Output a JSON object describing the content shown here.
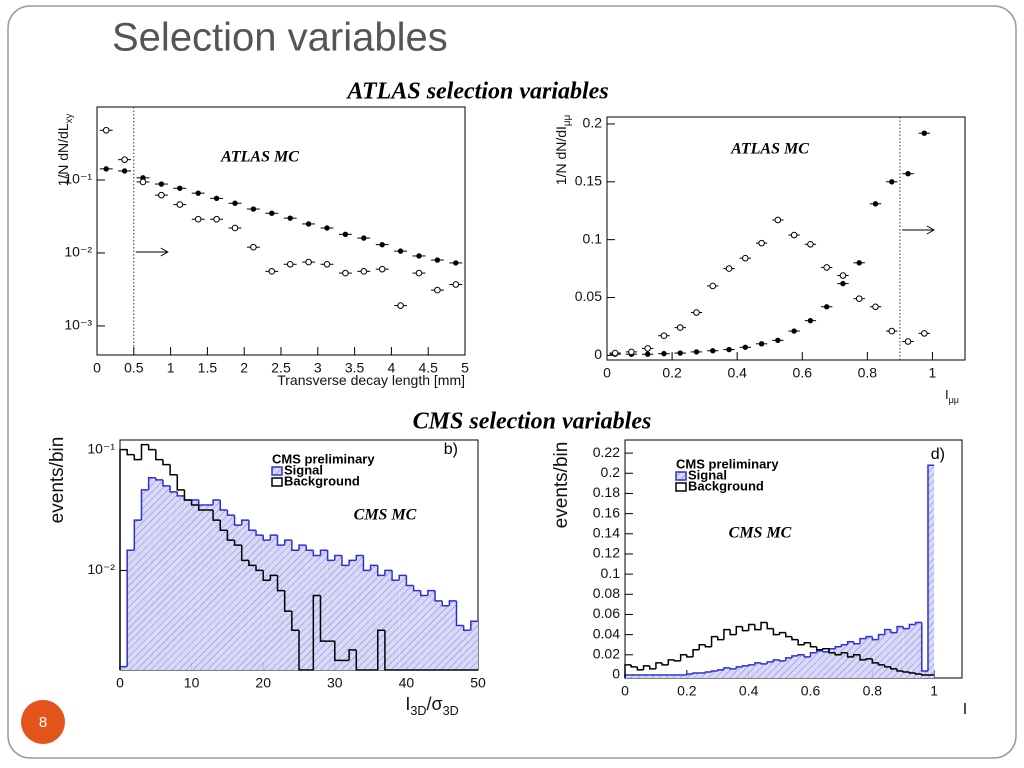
{
  "slide": {
    "title": "Selection variables",
    "atlas_heading": "ATLAS selection variables",
    "cms_heading": "CMS selection variables",
    "page_number": "8"
  },
  "chart_data": [
    {
      "type": "scatter",
      "annotation": "ATLAS MC",
      "x_label": [
        "Transverse decay length [mm]"
      ],
      "y_label": [
        "1/N dN/dL",
        "xy"
      ],
      "x": [
        0.125,
        0.375,
        0.625,
        0.875,
        1.125,
        1.375,
        1.625,
        1.875,
        2.125,
        2.375,
        2.625,
        2.875,
        3.125,
        3.375,
        3.625,
        3.875,
        4.125,
        4.375,
        4.625,
        4.875
      ],
      "series": [
        {
          "marker": "filled",
          "color": "#000000",
          "values": [
            0.142,
            0.133,
            0.107,
            0.088,
            0.077,
            0.066,
            0.056,
            0.048,
            0.04,
            0.035,
            0.03,
            0.025,
            0.022,
            0.018,
            0.016,
            0.013,
            0.0106,
            0.0091,
            0.008,
            0.0073
          ]
        },
        {
          "marker": "open",
          "color": "#000000",
          "values": [
            0.48,
            0.19,
            0.094,
            0.062,
            0.046,
            0.029,
            0.029,
            0.022,
            0.012,
            0.0056,
            0.007,
            0.0075,
            0.007,
            0.0053,
            0.0056,
            0.006,
            0.0019,
            0.0053,
            0.0031,
            0.0037
          ]
        }
      ],
      "cut": 0.5,
      "log_y": true,
      "xlim": [
        0,
        5
      ],
      "ylim": [
        0.0004,
        1
      ],
      "xticks": [
        0,
        0.5,
        1,
        1.5,
        2,
        2.5,
        3,
        3.5,
        4,
        4.5,
        5
      ],
      "yticks": [
        {
          "value": 0.001,
          "label": "10⁻³"
        },
        {
          "value": 0.01,
          "label": "10⁻²"
        },
        {
          "value": 0.1,
          "label": "10⁻¹"
        }
      ]
    },
    {
      "type": "scatter",
      "annotation": "ATLAS MC",
      "x_label": [
        "I",
        "μμ"
      ],
      "y_label": [
        "1/N dN/dI",
        "μμ"
      ],
      "x": [
        0.025,
        0.075,
        0.125,
        0.175,
        0.225,
        0.275,
        0.325,
        0.375,
        0.425,
        0.475,
        0.525,
        0.575,
        0.625,
        0.675,
        0.725,
        0.775,
        0.825,
        0.875,
        0.925,
        0.975
      ],
      "series": [
        {
          "marker": "filled",
          "color": "#000000",
          "values": [
            0.001,
            0.001,
            0.001,
            0.0015,
            0.002,
            0.003,
            0.004,
            0.005,
            0.007,
            0.01,
            0.013,
            0.021,
            0.03,
            0.042,
            0.062,
            0.08,
            0.131,
            0.15,
            0.157,
            0.192
          ]
        },
        {
          "marker": "open",
          "color": "#000000",
          "values": [
            0.002,
            0.003,
            0.006,
            0.017,
            0.024,
            0.037,
            0.06,
            0.075,
            0.084,
            0.097,
            0.117,
            0.104,
            0.096,
            0.076,
            0.069,
            0.049,
            0.042,
            0.021,
            0.012,
            0.019
          ]
        }
      ],
      "cut": 0.9,
      "log_y": false,
      "xlim": [
        0,
        1.1
      ],
      "ylim": [
        -0.004,
        0.206
      ],
      "xticks": [
        0,
        0.2,
        0.4,
        0.6,
        0.8,
        1
      ],
      "yticks": [
        0,
        0.05,
        0.1,
        0.15,
        0.2
      ]
    },
    {
      "type": "histogram",
      "annotation": "CMS MC",
      "panel_label": "b)",
      "legend_title": "CMS preliminary",
      "legend": "upper right",
      "x_label": [
        "I",
        "3D",
        "/σ",
        "3D"
      ],
      "y_label": [
        "events/bin"
      ],
      "bins": [
        0,
        1,
        2,
        3,
        4,
        5,
        6,
        7,
        8,
        9,
        10,
        11,
        12,
        13,
        14,
        15,
        16,
        17,
        18,
        19,
        20,
        21,
        22,
        23,
        24,
        25,
        26,
        27,
        28,
        29,
        30,
        31,
        32,
        33,
        34,
        35,
        36,
        37,
        38,
        39,
        40,
        41,
        42,
        43,
        44,
        45,
        46,
        47,
        48,
        49,
        50
      ],
      "series": [
        {
          "name": "Signal",
          "color": "#2f2fd8",
          "hatch": true,
          "values": [
            0.0016,
            0.0147,
            0.0261,
            0.0464,
            0.0584,
            0.0562,
            0.0501,
            0.0447,
            0.0414,
            0.0383,
            0.0383,
            0.0348,
            0.0348,
            0.0383,
            0.0316,
            0.0287,
            0.0237,
            0.0261,
            0.0215,
            0.0196,
            0.0178,
            0.0196,
            0.0162,
            0.0178,
            0.0147,
            0.0162,
            0.0147,
            0.0133,
            0.0147,
            0.0121,
            0.0133,
            0.011,
            0.0121,
            0.0133,
            0.01,
            0.011,
            0.0091,
            0.01,
            0.0083,
            0.0091,
            0.0075,
            0.0068,
            0.0062,
            0.0068,
            0.0056,
            0.0051,
            0.0056,
            0.0035,
            0.0032,
            0.0038
          ]
        },
        {
          "name": "Background",
          "color": "#000000",
          "hatch": false,
          "values": [
            0.1,
            0.0909,
            0.0825,
            0.11,
            0.1,
            0.0825,
            0.075,
            0.0619,
            0.0464,
            0.0383,
            0.0348,
            0.0316,
            0.0316,
            0.0261,
            0.0215,
            0.0178,
            0.0162,
            0.0121,
            0.011,
            0.01,
            0.0083,
            0.0091,
            0.0068,
            0.0046,
            0.0032,
            0,
            0,
            0.0062,
            0.0026,
            0.0026,
            0.0018,
            0.0018,
            0.0022,
            0,
            0,
            0,
            0.0032,
            0,
            0,
            0,
            0,
            0,
            0,
            0,
            0,
            0,
            0,
            0,
            0,
            0
          ]
        }
      ],
      "log_y": true,
      "xlim": [
        0,
        50
      ],
      "ylim": [
        0.0015,
        0.12
      ],
      "xticks": [
        0,
        10,
        20,
        30,
        40,
        50
      ],
      "yticks": [
        {
          "value": 0.01,
          "label": "10⁻²"
        },
        {
          "value": 0.1,
          "label": "10⁻¹"
        }
      ]
    },
    {
      "type": "histogram",
      "annotation": "CMS MC",
      "panel_label": "d)",
      "legend_title": "CMS preliminary",
      "legend": "upper left",
      "x_label": [
        "I"
      ],
      "y_label": [
        "events/bin"
      ],
      "bins": [
        0,
        0.02,
        0.04,
        0.06,
        0.08,
        0.1,
        0.12,
        0.14,
        0.16,
        0.18,
        0.2,
        0.22,
        0.24,
        0.26,
        0.28,
        0.3,
        0.32,
        0.34,
        0.36,
        0.38,
        0.4,
        0.42,
        0.44,
        0.46,
        0.48,
        0.5,
        0.52,
        0.54,
        0.56,
        0.58,
        0.6,
        0.62,
        0.64,
        0.66,
        0.68,
        0.7,
        0.72,
        0.74,
        0.76,
        0.78,
        0.8,
        0.82,
        0.84,
        0.86,
        0.88,
        0.9,
        0.92,
        0.94,
        0.96,
        0.98,
        1.0
      ],
      "series": [
        {
          "name": "Signal",
          "color": "#2f2fd8",
          "hatch": true,
          "values": [
            0,
            0,
            0,
            0,
            0,
            0,
            0,
            0,
            0,
            0,
            0.001,
            0.002,
            0.002,
            0.003,
            0.004,
            0.005,
            0.007,
            0.006,
            0.008,
            0.009,
            0.01,
            0.012,
            0.011,
            0.013,
            0.015,
            0.014,
            0.017,
            0.019,
            0.02,
            0.018,
            0.022,
            0.024,
            0.023,
            0.026,
            0.028,
            0.03,
            0.033,
            0.031,
            0.036,
            0.038,
            0.035,
            0.04,
            0.045,
            0.042,
            0.048,
            0.046,
            0.05,
            0.052,
            0.004,
            0.208
          ]
        },
        {
          "name": "Background",
          "color": "#000000",
          "hatch": false,
          "values": [
            0.01,
            0.008,
            0.005,
            0.009,
            0.006,
            0.012,
            0.01,
            0.015,
            0.014,
            0.02,
            0.018,
            0.025,
            0.03,
            0.028,
            0.038,
            0.035,
            0.045,
            0.04,
            0.048,
            0.044,
            0.05,
            0.045,
            0.052,
            0.046,
            0.04,
            0.042,
            0.038,
            0.035,
            0.03,
            0.032,
            0.028,
            0.025,
            0.026,
            0.022,
            0.02,
            0.022,
            0.018,
            0.02,
            0.015,
            0.016,
            0.012,
            0.01,
            0.008,
            0.006,
            0.004,
            0.003,
            0.002,
            0.001,
            0,
            0
          ]
        }
      ],
      "log_y": false,
      "xlim": [
        0,
        1.09
      ],
      "ylim": [
        -0.003,
        0.233
      ],
      "xticks": [
        0,
        0.2,
        0.4,
        0.6,
        0.8,
        1
      ],
      "yticks": [
        0,
        0.02,
        0.04,
        0.06,
        0.08,
        0.1,
        0.12,
        0.14,
        0.16,
        0.18,
        0.2,
        0.22
      ]
    }
  ]
}
